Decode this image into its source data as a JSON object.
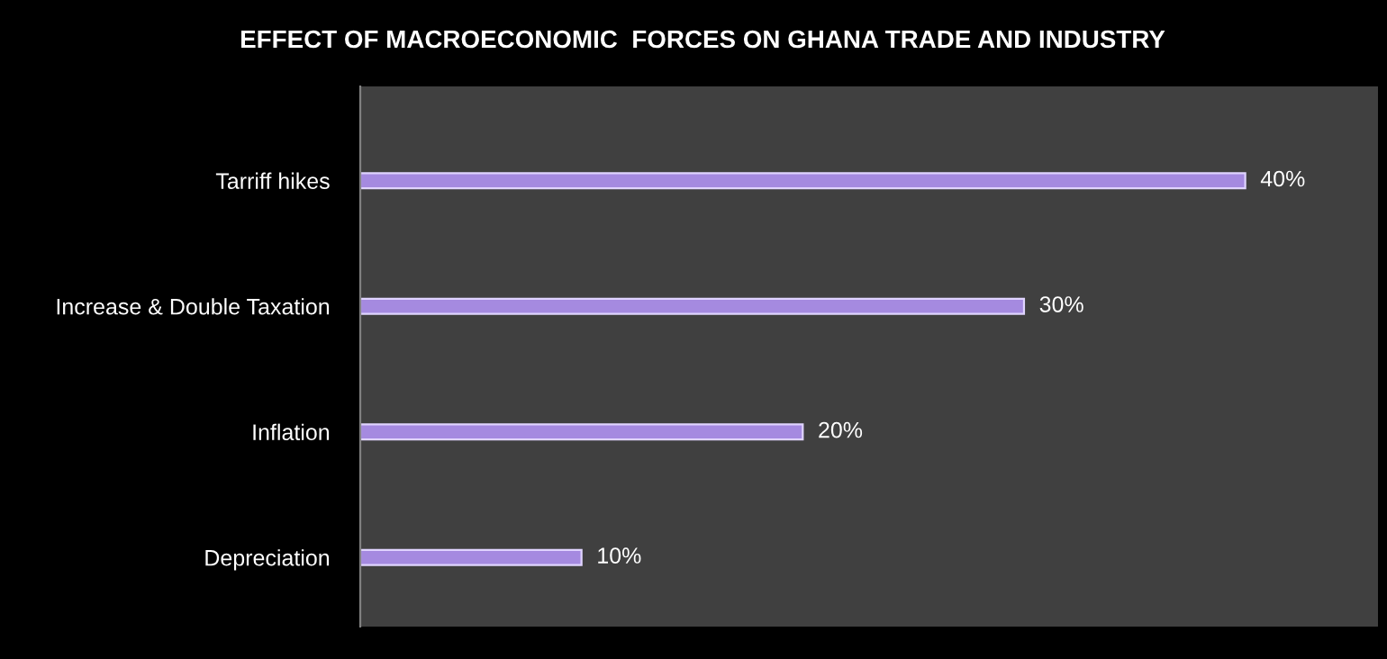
{
  "chart_data": {
    "type": "bar",
    "orientation": "horizontal",
    "title": "EFFECT OF MACROECONOMIC  FORCES ON GHANA TRADE AND INDUSTRY",
    "categories": [
      "Tarriff hikes",
      "Increase & Double Taxation",
      "Inflation",
      "Depreciation"
    ],
    "values": [
      40,
      30,
      20,
      10
    ],
    "value_labels": [
      "40%",
      "30%",
      "20%",
      "10%"
    ],
    "color": "#a58ae0",
    "grid": false,
    "legend": false
  }
}
